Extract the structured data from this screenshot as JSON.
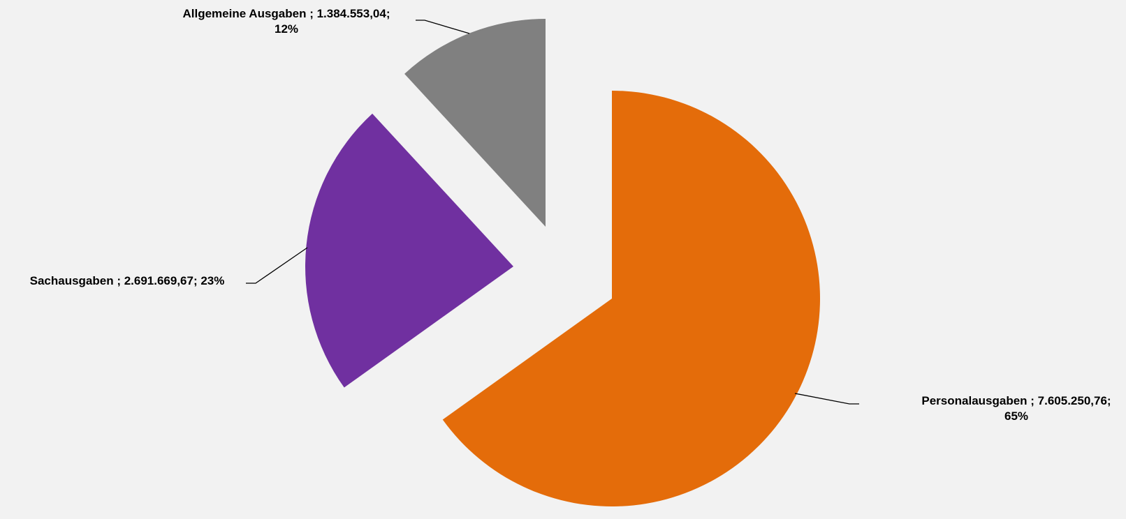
{
  "chart_data": {
    "type": "pie",
    "exploded": true,
    "legend": "none",
    "slices": [
      {
        "name": "Personalausgaben",
        "value": 7605250.76,
        "percent": 65,
        "color": "#e46c0a",
        "label_lines": [
          "Personalausgaben ; 7.605.250,76;",
          "65%"
        ]
      },
      {
        "name": "Sachausgaben",
        "value": 2691669.67,
        "percent": 23,
        "color": "#7030a0",
        "label_lines": [
          "Sachausgaben ; 2.691.669,67; 23%"
        ]
      },
      {
        "name": "Allgemeine Ausgaben",
        "value": 1384553.04,
        "percent": 12,
        "color": "#808080",
        "label_lines": [
          "Allgemeine Ausgaben ; 1.384.553,04;",
          "12%"
        ]
      }
    ]
  }
}
